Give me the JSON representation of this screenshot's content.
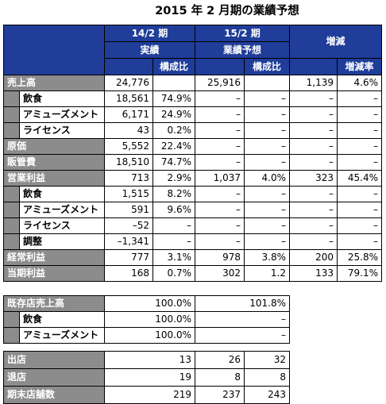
{
  "title": "2015 年 2 月期の業績予想",
  "main_table": {
    "header": {
      "period1": "14/2 期",
      "period1_sub": "実績",
      "period2": "15/2 期",
      "period2_sub": "業績予想",
      "change": "増減",
      "ratio": "構成比",
      "rate": "増減率"
    },
    "rows": [
      {
        "label": "売上高",
        "sub": false,
        "v1": "24,776",
        "r1": "",
        "v2": "25,916",
        "r2": "",
        "d": "1,139",
        "dr": "4.6%"
      },
      {
        "label": "飲食",
        "sub": true,
        "v1": "18,561",
        "r1": "74.9%",
        "v2": "–",
        "r2": "–",
        "d": "–",
        "dr": "–"
      },
      {
        "label": "アミューズメント",
        "sub": true,
        "v1": "6,171",
        "r1": "24.9%",
        "v2": "–",
        "r2": "–",
        "d": "–",
        "dr": "–"
      },
      {
        "label": "ライセンス",
        "sub": true,
        "v1": "43",
        "r1": "0.2%",
        "v2": "–",
        "r2": "–",
        "d": "–",
        "dr": "–"
      },
      {
        "label": "原価",
        "sub": false,
        "v1": "5,552",
        "r1": "22.4%",
        "v2": "–",
        "r2": "–",
        "d": "–",
        "dr": "–"
      },
      {
        "label": "販管費",
        "sub": false,
        "v1": "18,510",
        "r1": "74.7%",
        "v2": "–",
        "r2": "–",
        "d": "–",
        "dr": "–"
      },
      {
        "label": "営業利益",
        "sub": false,
        "v1": "713",
        "r1": "2.9%",
        "v2": "1,037",
        "r2": "4.0%",
        "d": "323",
        "dr": "45.4%"
      },
      {
        "label": "飲食",
        "sub": true,
        "v1": "1,515",
        "r1": "8.2%",
        "v2": "–",
        "r2": "–",
        "d": "–",
        "dr": "–"
      },
      {
        "label": "アミューズメント",
        "sub": true,
        "v1": "591",
        "r1": "9.6%",
        "v2": "–",
        "r2": "–",
        "d": "–",
        "dr": "–"
      },
      {
        "label": "ライセンス",
        "sub": true,
        "v1": "–52",
        "r1": "–",
        "v2": "–",
        "r2": "–",
        "d": "–",
        "dr": "–"
      },
      {
        "label": "調整",
        "sub": true,
        "v1": "–1,341",
        "r1": "–",
        "v2": "–",
        "r2": "–",
        "d": "–",
        "dr": "–"
      },
      {
        "label": "経常利益",
        "sub": false,
        "v1": "777",
        "r1": "3.1%",
        "v2": "978",
        "r2": "3.8%",
        "d": "200",
        "dr": "25.8%"
      },
      {
        "label": "当期利益",
        "sub": false,
        "v1": "168",
        "r1": "0.7%",
        "v2": "302",
        "r2": "1.2",
        "d": "133",
        "dr": "79.1%"
      }
    ]
  },
  "existing_table": {
    "rows": [
      {
        "label": "既存店売上高",
        "sub": false,
        "v1": "100.0%",
        "v2": "101.8%"
      },
      {
        "label": "飲食",
        "sub": true,
        "v1": "100.0%",
        "v2": "–"
      },
      {
        "label": "アミューズメント",
        "sub": true,
        "v1": "100.0%",
        "v2": "–"
      }
    ]
  },
  "store_table": {
    "rows": [
      {
        "label": "出店",
        "a": "13",
        "b": "26",
        "c": "32"
      },
      {
        "label": "退店",
        "a": "19",
        "b": "8",
        "c": "8"
      },
      {
        "label": "期末店舗数",
        "a": "219",
        "b": "237",
        "c": "243"
      }
    ]
  },
  "colors": {
    "header_blue": "#1f3d99",
    "label_gray": "#8c8c8c"
  }
}
